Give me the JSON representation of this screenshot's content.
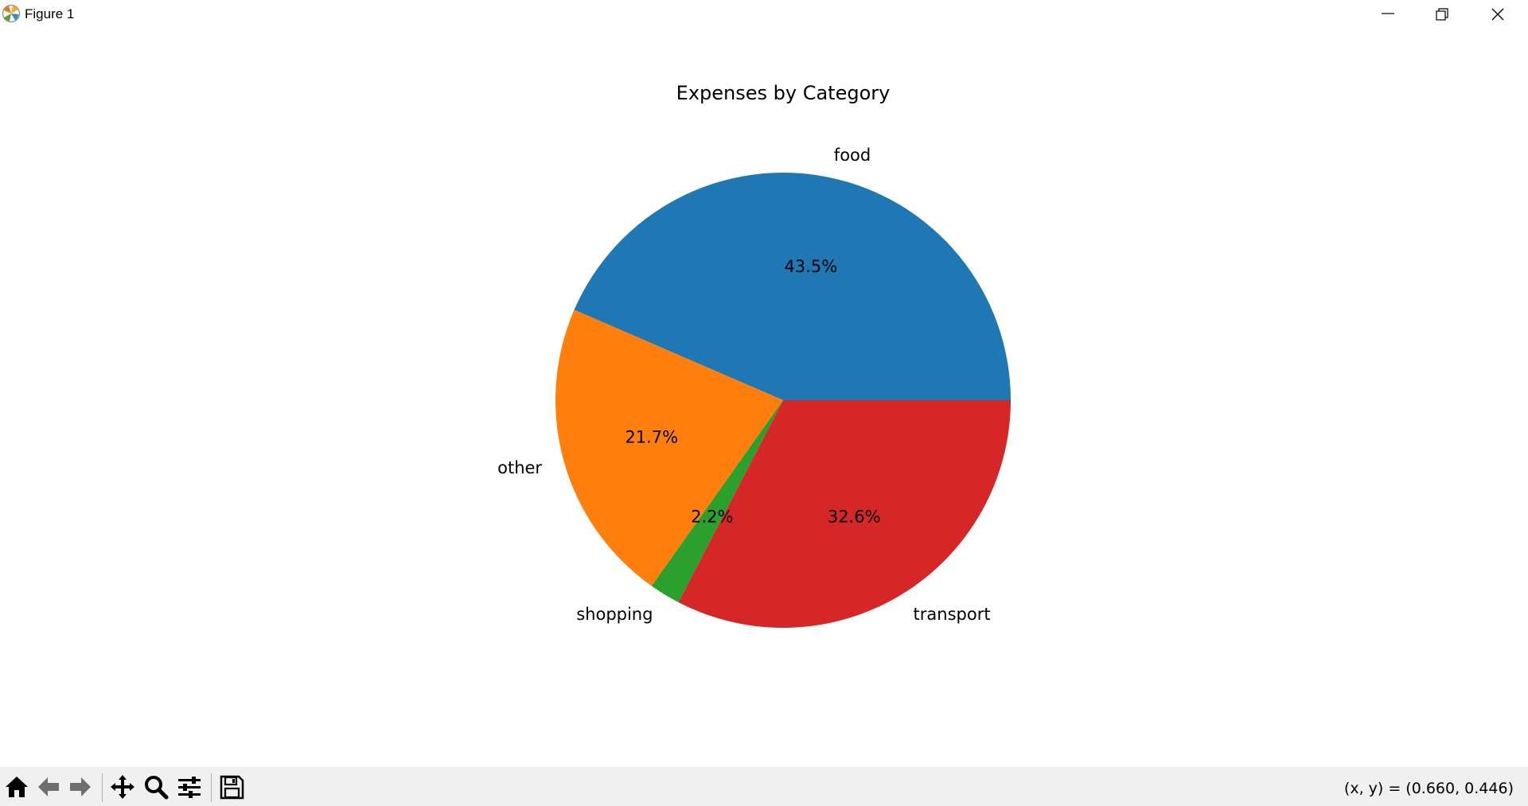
{
  "window": {
    "title": "Figure 1",
    "icon": "matplotlib-logo-icon",
    "controls": [
      "minimize-icon",
      "restore-icon",
      "close-icon"
    ]
  },
  "chart_data": {
    "type": "pie",
    "title": "Expenses by Category",
    "labels": [
      "food",
      "other",
      "shopping",
      "transport"
    ],
    "values": [
      43.5,
      21.7,
      2.2,
      32.6
    ],
    "autopct_labels": [
      "43.5%",
      "21.7%",
      "2.2%",
      "32.6%"
    ],
    "colors": [
      "#1f77b4",
      "#ff7f0e",
      "#2ca02c",
      "#d62728"
    ],
    "start_angle_deg": 0,
    "direction": "counterclockwise"
  },
  "toolbar": {
    "buttons": [
      "home-icon",
      "back-icon",
      "forward-icon",
      "pan-icon",
      "zoom-icon",
      "configure-subplots-icon",
      "save-icon"
    ],
    "coords": "(x, y) = (0.660, 0.446)"
  }
}
